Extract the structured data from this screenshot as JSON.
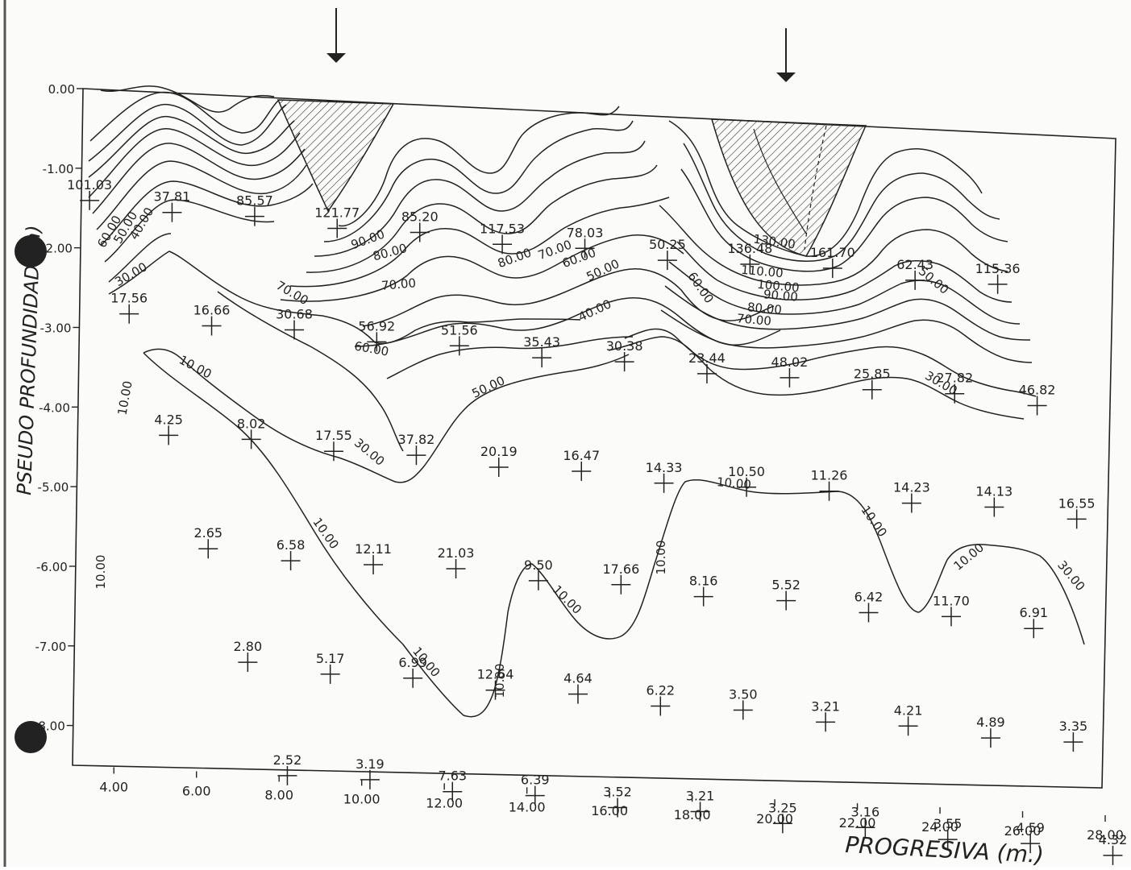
{
  "chart_data": {
    "type": "heatmap",
    "title": "",
    "xlabel": "PROGRESIVA (m.)",
    "ylabel": "PSEUDO PROFUNDIDAD (m)",
    "x_ticks": [
      "4.00",
      "6.00",
      "8.00",
      "10.00",
      "12.00",
      "14.00",
      "16.00",
      "18.00",
      "20.00",
      "22.00",
      "24.00",
      "26.00",
      "28.00"
    ],
    "y_ticks": [
      "0.00",
      "-1.00",
      "-2.00",
      "-3.00",
      "-4.00",
      "-5.00",
      "-6.00",
      "-7.00",
      "-8.00"
    ],
    "xlim": [
      3,
      28
    ],
    "ylim": [
      -8.5,
      0
    ],
    "series": [
      {
        "name": "",
        "points": [
          {
            "x": 3.2,
            "y": -1.4,
            "v": "101.03"
          },
          {
            "x": 5.2,
            "y": -1.5,
            "v": "37.81"
          },
          {
            "x": 7.2,
            "y": -1.5,
            "v": "85.57"
          },
          {
            "x": 9.2,
            "y": -1.6,
            "v": "121.77"
          },
          {
            "x": 11.2,
            "y": -1.6,
            "v": "85.20"
          },
          {
            "x": 13.2,
            "y": -1.7,
            "v": "117.53"
          },
          {
            "x": 15.2,
            "y": -1.7,
            "v": "78.03"
          },
          {
            "x": 17.2,
            "y": -1.8,
            "v": "50.25"
          },
          {
            "x": 19.2,
            "y": -1.8,
            "v": "136.48"
          },
          {
            "x": 21.2,
            "y": -1.8,
            "v": "161.70"
          },
          {
            "x": 23.2,
            "y": -1.9,
            "v": "62.43"
          },
          {
            "x": 25.2,
            "y": -1.9,
            "v": "115.36"
          }
        ]
      },
      {
        "name": "",
        "points": [
          {
            "x": 4.2,
            "y": -2.8,
            "v": "17.56"
          },
          {
            "x": 6.2,
            "y": -2.9,
            "v": "16.66"
          },
          {
            "x": 8.2,
            "y": -2.9,
            "v": "30.68"
          },
          {
            "x": 10.2,
            "y": -3.0,
            "v": "56.92"
          },
          {
            "x": 12.2,
            "y": -3.0,
            "v": "51.56"
          },
          {
            "x": 14.2,
            "y": -3.1,
            "v": "35.43"
          },
          {
            "x": 16.2,
            "y": -3.1,
            "v": "30.38"
          },
          {
            "x": 18.2,
            "y": -3.2,
            "v": "23.44"
          },
          {
            "x": 20.2,
            "y": -3.2,
            "v": "48.02"
          },
          {
            "x": 22.2,
            "y": -3.3,
            "v": "25.85"
          },
          {
            "x": 24.2,
            "y": -3.3,
            "v": "27.82"
          },
          {
            "x": 26.2,
            "y": -3.4,
            "v": "46.82"
          }
        ]
      },
      {
        "name": "",
        "points": [
          {
            "x": 5.2,
            "y": -4.3,
            "v": "4.25"
          },
          {
            "x": 7.2,
            "y": -4.3,
            "v": "8.02"
          },
          {
            "x": 9.2,
            "y": -4.4,
            "v": "17.55"
          },
          {
            "x": 11.2,
            "y": -4.4,
            "v": "37.82"
          },
          {
            "x": 13.2,
            "y": -4.5,
            "v": "20.19"
          },
          {
            "x": 15.2,
            "y": -4.5,
            "v": "16.47"
          },
          {
            "x": 17.2,
            "y": -4.6,
            "v": "14.33"
          },
          {
            "x": 19.2,
            "y": -4.6,
            "v": "10.50"
          },
          {
            "x": 21.2,
            "y": -4.6,
            "v": "11.26"
          },
          {
            "x": 23.2,
            "y": -4.7,
            "v": "14.23"
          },
          {
            "x": 25.2,
            "y": -4.7,
            "v": "14.13"
          },
          {
            "x": 27.2,
            "y": -4.8,
            "v": "16.55"
          }
        ]
      },
      {
        "name": "",
        "points": [
          {
            "x": 6.2,
            "y": -5.7,
            "v": "2.65"
          },
          {
            "x": 8.2,
            "y": -5.8,
            "v": "6.58"
          },
          {
            "x": 10.2,
            "y": -5.8,
            "v": "12.11"
          },
          {
            "x": 12.2,
            "y": -5.8,
            "v": "21.03"
          },
          {
            "x": 14.2,
            "y": -5.9,
            "v": "9.50"
          },
          {
            "x": 16.2,
            "y": -5.9,
            "v": "17.66"
          },
          {
            "x": 18.2,
            "y": -6.0,
            "v": "8.16"
          },
          {
            "x": 20.2,
            "y": -6.0,
            "v": "5.52"
          },
          {
            "x": 22.2,
            "y": -6.1,
            "v": "6.42"
          },
          {
            "x": 24.2,
            "y": -6.1,
            "v": "11.70"
          },
          {
            "x": 26.2,
            "y": -6.2,
            "v": "6.91"
          }
        ]
      },
      {
        "name": "",
        "points": [
          {
            "x": 7.2,
            "y": -7.1,
            "v": "2.80"
          },
          {
            "x": 9.2,
            "y": -7.2,
            "v": "5.17"
          },
          {
            "x": 11.2,
            "y": -7.2,
            "v": "6.99"
          },
          {
            "x": 13.2,
            "y": -7.3,
            "v": "12.64"
          },
          {
            "x": 15.2,
            "y": -7.3,
            "v": "4.64"
          },
          {
            "x": 17.2,
            "y": -7.4,
            "v": "6.22"
          },
          {
            "x": 19.2,
            "y": -7.4,
            "v": "3.50"
          },
          {
            "x": 21.2,
            "y": -7.5,
            "v": "3.21"
          },
          {
            "x": 23.2,
            "y": -7.5,
            "v": "4.21"
          },
          {
            "x": 25.2,
            "y": -7.6,
            "v": "4.89"
          },
          {
            "x": 27.2,
            "y": -7.6,
            "v": "3.35"
          }
        ]
      },
      {
        "name": "",
        "points": [
          {
            "x": 8.2,
            "y": -8.5,
            "v": "2.52"
          },
          {
            "x": 10.2,
            "y": -8.5,
            "v": "3.19"
          },
          {
            "x": 12.2,
            "y": -8.6,
            "v": "7.63"
          },
          {
            "x": 14.2,
            "y": -8.6,
            "v": "6.39"
          },
          {
            "x": 16.2,
            "y": -8.7,
            "v": "3.52"
          },
          {
            "x": 18.2,
            "y": -8.7,
            "v": "3.21"
          },
          {
            "x": 20.2,
            "y": -8.8,
            "v": "3.25"
          },
          {
            "x": 22.2,
            "y": -8.8,
            "v": "3.16"
          },
          {
            "x": 24.2,
            "y": -8.9,
            "v": "3.55"
          },
          {
            "x": 26.2,
            "y": -8.9,
            "v": "4.59"
          },
          {
            "x": 28.2,
            "y": -9.0,
            "v": "4.32"
          }
        ]
      }
    ],
    "contour_labels": [
      "60.00",
      "50.00",
      "40.00",
      "30.00",
      "90.00",
      "80.00",
      "70.00",
      "80.00",
      "70.00",
      "60.00",
      "50.00",
      "40.00",
      "130.00",
      "110.00",
      "100.00",
      "90.00",
      "80.00",
      "70.00",
      "60.00",
      "50.00",
      "30.00",
      "10.00",
      "10.00",
      "10.00",
      "10.00",
      "10.00",
      "10.00",
      "10.00",
      "10.00",
      "10.00",
      "10.00",
      "10.00",
      "30.00",
      "30.00",
      "50.00",
      "60.00",
      "70.00"
    ],
    "grid": false,
    "legend": "none"
  }
}
